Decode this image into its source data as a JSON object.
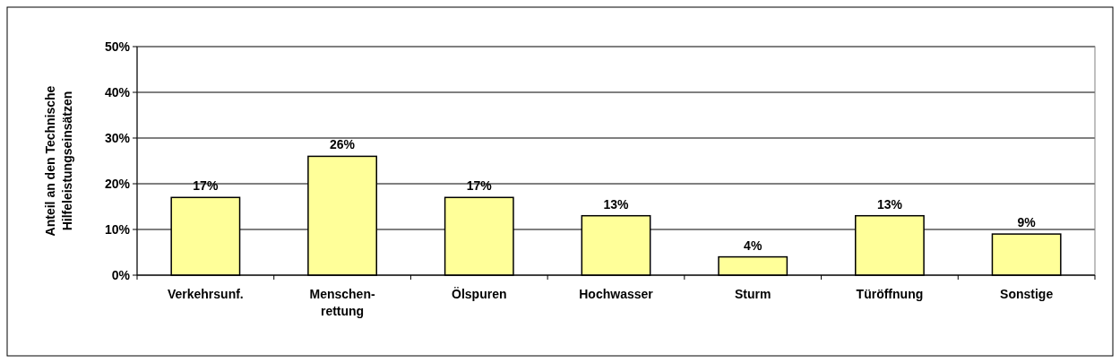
{
  "chart_data": {
    "type": "bar",
    "ylabel": "Anteil an den Technische Hilfeleistungseinsätzen",
    "categories": [
      "Verkehrsunf.",
      "Menschen-rettung",
      "Ölspuren",
      "Hochwasser",
      "Sturm",
      "Türöffnung",
      "Sonstige"
    ],
    "values": [
      17,
      26,
      17,
      13,
      4,
      13,
      9
    ],
    "value_labels": [
      "17%",
      "26%",
      "17%",
      "13%",
      "4%",
      "13%",
      "9%"
    ],
    "color": "#ffff99",
    "ylim": [
      0,
      50
    ],
    "yticks": [
      {
        "value": 0,
        "label": "0%"
      },
      {
        "value": 10,
        "label": "10%"
      },
      {
        "value": 20,
        "label": "20%"
      },
      {
        "value": 30,
        "label": "30%"
      },
      {
        "value": 40,
        "label": "40%"
      },
      {
        "value": 50,
        "label": "50%"
      }
    ],
    "grid": "y"
  }
}
